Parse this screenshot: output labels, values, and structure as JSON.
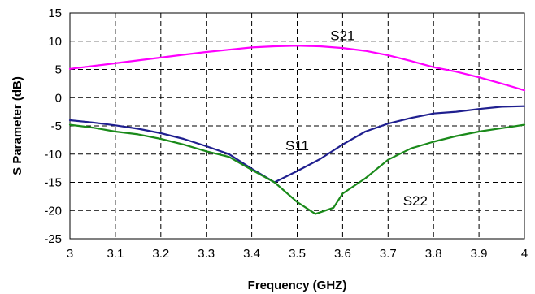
{
  "chart_data": {
    "type": "line",
    "title": "",
    "xlabel": "Frequency (GHZ)",
    "ylabel": "S Parameter (dB)",
    "xlim": [
      3,
      4
    ],
    "ylim": [
      -25,
      15
    ],
    "x_ticks": [
      "3",
      "3.1",
      "3.2",
      "3.3",
      "3.4",
      "3.5",
      "3.6",
      "3.7",
      "3.8",
      "3.9",
      "4"
    ],
    "y_ticks": [
      "15",
      "10",
      "5",
      "0",
      "-5",
      "-10",
      "-15",
      "-20",
      "-25"
    ],
    "grid": true,
    "legend": "inline labels",
    "series": [
      {
        "name": "S21",
        "color": "#ff00ff",
        "label_at": [
          3.6,
          10.2
        ],
        "points": [
          [
            3.0,
            5.1
          ],
          [
            3.05,
            5.6
          ],
          [
            3.1,
            6.1
          ],
          [
            3.15,
            6.6
          ],
          [
            3.2,
            7.1
          ],
          [
            3.25,
            7.6
          ],
          [
            3.3,
            8.1
          ],
          [
            3.35,
            8.5
          ],
          [
            3.4,
            8.9
          ],
          [
            3.45,
            9.1
          ],
          [
            3.5,
            9.2
          ],
          [
            3.55,
            9.1
          ],
          [
            3.6,
            8.8
          ],
          [
            3.65,
            8.3
          ],
          [
            3.7,
            7.5
          ],
          [
            3.75,
            6.5
          ],
          [
            3.8,
            5.4
          ],
          [
            3.85,
            4.6
          ],
          [
            3.9,
            3.6
          ],
          [
            3.95,
            2.5
          ],
          [
            4.0,
            1.3
          ]
        ]
      },
      {
        "name": "S11",
        "color": "#1f1f8f",
        "label_at": [
          3.5,
          -9.3
        ],
        "points": [
          [
            3.0,
            -4.0
          ],
          [
            3.05,
            -4.4
          ],
          [
            3.1,
            -4.9
          ],
          [
            3.15,
            -5.5
          ],
          [
            3.2,
            -6.3
          ],
          [
            3.25,
            -7.3
          ],
          [
            3.3,
            -8.6
          ],
          [
            3.35,
            -10.0
          ],
          [
            3.4,
            -12.6
          ],
          [
            3.45,
            -15.0
          ],
          [
            3.5,
            -13.0
          ],
          [
            3.55,
            -10.9
          ],
          [
            3.6,
            -8.3
          ],
          [
            3.65,
            -6.0
          ],
          [
            3.7,
            -4.6
          ],
          [
            3.75,
            -3.6
          ],
          [
            3.8,
            -2.8
          ],
          [
            3.85,
            -2.5
          ],
          [
            3.9,
            -2.0
          ],
          [
            3.95,
            -1.6
          ],
          [
            4.0,
            -1.5
          ]
        ]
      },
      {
        "name": "S22",
        "color": "#1a8a1a",
        "label_at": [
          3.76,
          -19.1
        ],
        "points": [
          [
            3.0,
            -4.8
          ],
          [
            3.05,
            -5.3
          ],
          [
            3.1,
            -6.0
          ],
          [
            3.15,
            -6.5
          ],
          [
            3.2,
            -7.3
          ],
          [
            3.25,
            -8.3
          ],
          [
            3.3,
            -9.5
          ],
          [
            3.35,
            -10.5
          ],
          [
            3.4,
            -12.8
          ],
          [
            3.45,
            -15.0
          ],
          [
            3.5,
            -18.5
          ],
          [
            3.54,
            -20.6
          ],
          [
            3.58,
            -19.5
          ],
          [
            3.6,
            -17.0
          ],
          [
            3.65,
            -14.3
          ],
          [
            3.7,
            -11.0
          ],
          [
            3.75,
            -9.0
          ],
          [
            3.8,
            -7.8
          ],
          [
            3.85,
            -6.8
          ],
          [
            3.9,
            -6.0
          ],
          [
            3.95,
            -5.4
          ],
          [
            4.0,
            -4.8
          ]
        ]
      }
    ]
  }
}
